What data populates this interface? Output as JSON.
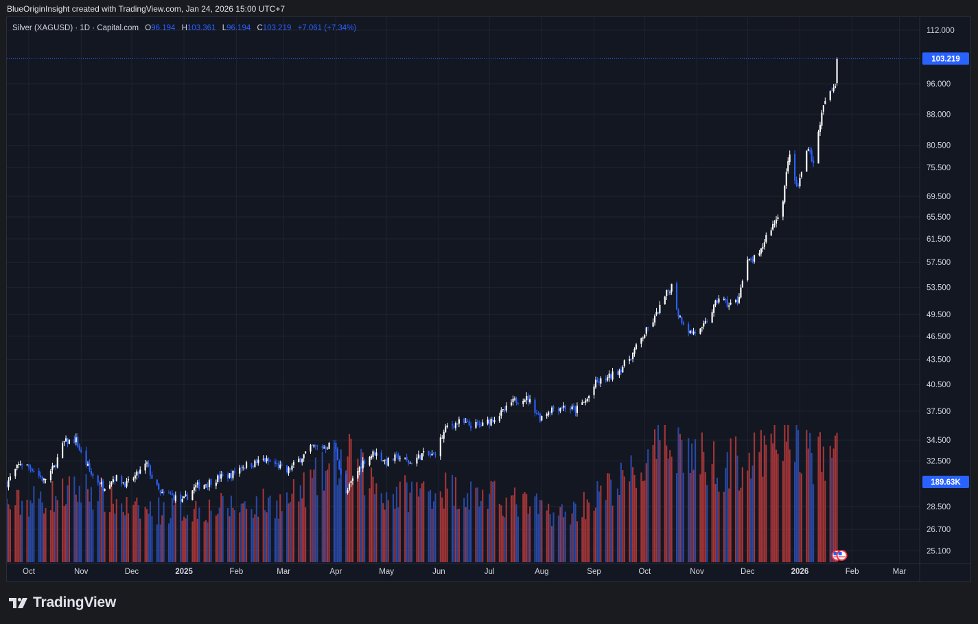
{
  "header": {
    "attribution": "BlueOriginInsight created with TradingView.com, Jan 24, 2026 15:00 UTC+7"
  },
  "legend": {
    "symbol": "Silver (XAGUSD) · 1D · Capital.com",
    "open_label": "O",
    "open": "96.194",
    "high_label": "H",
    "high": "103.361",
    "low_label": "L",
    "low": "96.194",
    "close_label": "C",
    "close": "103.219",
    "change": "+7.061 (+7.34%)"
  },
  "price_axis": {
    "badge_price": "103.219",
    "badge_volume": "189.63K"
  },
  "branding": {
    "logo_text": "TradingView",
    "logo_icon": "tradingview-logo-icon"
  },
  "colors": {
    "up": "#ffffff",
    "down": "#2962ff",
    "vol_up": "#b2393a",
    "vol_down": "#2b4eb0",
    "background": "#131722",
    "grid": "#1f2430"
  },
  "chart_data": {
    "type": "candlestick",
    "title": "Silver (XAGUSD) · 1D · Capital.com",
    "y_scale": "log",
    "ylim": [
      24.2,
      114
    ],
    "y_ticks": [
      "112.000",
      "96.000",
      "88.000",
      "80.500",
      "75.500",
      "69.500",
      "65.500",
      "61.500",
      "57.500",
      "53.500",
      "49.500",
      "46.500",
      "43.500",
      "40.500",
      "37.500",
      "34.500",
      "32.500",
      "28.500",
      "26.700",
      "25.100"
    ],
    "x_ticks": [
      "Oct",
      "Nov",
      "Dec",
      "2025",
      "Feb",
      "Mar",
      "Apr",
      "May",
      "Jun",
      "Jul",
      "Aug",
      "Sep",
      "Oct",
      "Nov",
      "Dec",
      "2026",
      "Feb",
      "Mar"
    ],
    "x_tick_dates": [
      "2024-10-01",
      "2024-11-01",
      "2024-12-01",
      "2025-01-01",
      "2025-02-01",
      "2025-03-01",
      "2025-04-01",
      "2025-05-01",
      "2025-06-01",
      "2025-07-01",
      "2025-08-01",
      "2025-09-01",
      "2025-10-01",
      "2025-11-01",
      "2025-12-01",
      "2026-01-01",
      "2026-02-01",
      "2026-03-01"
    ],
    "x_range": [
      "2024-09-18",
      "2026-03-13"
    ],
    "price_keypoints": [
      [
        "2024-09-18",
        30.5
      ],
      [
        "2024-09-26",
        32.3
      ],
      [
        "2024-10-03",
        31.8
      ],
      [
        "2024-10-10",
        30.7
      ],
      [
        "2024-10-16",
        31.9
      ],
      [
        "2024-10-22",
        34.3
      ],
      [
        "2024-10-29",
        34.5
      ],
      [
        "2024-11-01",
        33.2
      ],
      [
        "2024-11-07",
        31.3
      ],
      [
        "2024-11-14",
        30.2
      ],
      [
        "2024-11-21",
        31.0
      ],
      [
        "2024-11-28",
        30.4
      ],
      [
        "2024-12-04",
        31.2
      ],
      [
        "2024-12-10",
        32.2
      ],
      [
        "2024-12-13",
        31.0
      ],
      [
        "2024-12-18",
        29.5
      ],
      [
        "2024-12-24",
        29.5
      ],
      [
        "2024-12-31",
        28.9
      ],
      [
        "2025-01-08",
        30.2
      ],
      [
        "2025-01-15",
        30.5
      ],
      [
        "2025-01-22",
        31.0
      ],
      [
        "2025-01-29",
        31.2
      ],
      [
        "2025-02-04",
        32.0
      ],
      [
        "2025-02-12",
        32.3
      ],
      [
        "2025-02-17",
        32.6
      ],
      [
        "2025-02-24",
        32.2
      ],
      [
        "2025-03-03",
        31.5
      ],
      [
        "2025-03-10",
        32.6
      ],
      [
        "2025-03-18",
        33.8
      ],
      [
        "2025-03-25",
        33.8
      ],
      [
        "2025-03-31",
        34.2
      ],
      [
        "2025-04-03",
        32.0
      ],
      [
        "2025-04-07",
        29.5
      ],
      [
        "2025-04-10",
        30.5
      ],
      [
        "2025-04-17",
        32.4
      ],
      [
        "2025-04-24",
        33.3
      ],
      [
        "2025-05-01",
        32.4
      ],
      [
        "2025-05-08",
        32.9
      ],
      [
        "2025-05-15",
        32.3
      ],
      [
        "2025-05-22",
        33.1
      ],
      [
        "2025-05-29",
        33.0
      ],
      [
        "2025-06-02",
        34.5
      ],
      [
        "2025-06-06",
        35.9
      ],
      [
        "2025-06-13",
        36.3
      ],
      [
        "2025-06-20",
        36.0
      ],
      [
        "2025-06-27",
        36.0
      ],
      [
        "2025-07-03",
        36.7
      ],
      [
        "2025-07-10",
        37.5
      ],
      [
        "2025-07-14",
        38.4
      ],
      [
        "2025-07-21",
        39.0
      ],
      [
        "2025-07-24",
        38.8
      ],
      [
        "2025-07-31",
        36.8
      ],
      [
        "2025-08-07",
        37.8
      ],
      [
        "2025-08-14",
        38.0
      ],
      [
        "2025-08-21",
        37.6
      ],
      [
        "2025-08-28",
        38.8
      ],
      [
        "2025-09-02",
        40.6
      ],
      [
        "2025-09-09",
        41.2
      ],
      [
        "2025-09-16",
        42.2
      ],
      [
        "2025-09-23",
        43.9
      ],
      [
        "2025-09-30",
        46.5
      ],
      [
        "2025-10-07",
        49.0
      ],
      [
        "2025-10-14",
        52.5
      ],
      [
        "2025-10-17",
        53.8
      ],
      [
        "2025-10-21",
        49.5
      ],
      [
        "2025-10-28",
        47.0
      ],
      [
        "2025-11-04",
        47.3
      ],
      [
        "2025-11-11",
        50.5
      ],
      [
        "2025-11-14",
        52.0
      ],
      [
        "2025-11-20",
        50.8
      ],
      [
        "2025-11-25",
        51.5
      ],
      [
        "2025-12-01",
        57.5
      ],
      [
        "2025-12-08",
        58.5
      ],
      [
        "2025-12-12",
        62.0
      ],
      [
        "2025-12-18",
        65.0
      ],
      [
        "2025-12-22",
        69.0
      ],
      [
        "2025-12-26",
        79.0
      ],
      [
        "2025-12-29",
        72.0
      ],
      [
        "2025-12-31",
        71.5
      ],
      [
        "2026-01-06",
        80.5
      ],
      [
        "2026-01-09",
        76.0
      ],
      [
        "2026-01-13",
        86.0
      ],
      [
        "2026-01-16",
        91.5
      ],
      [
        "2026-01-20",
        94.0
      ],
      [
        "2026-01-22",
        96.2
      ],
      [
        "2026-01-23",
        103.219
      ]
    ],
    "volume_scale": "relative, 0-1",
    "volume_keypoints": [
      [
        "2024-09-18",
        0.42
      ],
      [
        "2024-11-06",
        0.55
      ],
      [
        "2024-12-02",
        0.38
      ],
      [
        "2025-01-15",
        0.4
      ],
      [
        "2025-03-03",
        0.45
      ],
      [
        "2025-04-07",
        0.78
      ],
      [
        "2025-05-01",
        0.5
      ],
      [
        "2025-06-04",
        0.55
      ],
      [
        "2025-07-15",
        0.45
      ],
      [
        "2025-08-15",
        0.35
      ],
      [
        "2025-09-10",
        0.55
      ],
      [
        "2025-10-01",
        0.7
      ],
      [
        "2025-10-17",
        0.95
      ],
      [
        "2025-10-28",
        0.8
      ],
      [
        "2025-11-15",
        0.72
      ],
      [
        "2025-12-10",
        0.78
      ],
      [
        "2025-12-26",
        1.0
      ],
      [
        "2026-01-05",
        0.82
      ],
      [
        "2026-01-15",
        0.75
      ],
      [
        "2026-01-23",
        0.85
      ]
    ],
    "events": [
      "us-flag-icon",
      "us-flag-icon"
    ]
  }
}
